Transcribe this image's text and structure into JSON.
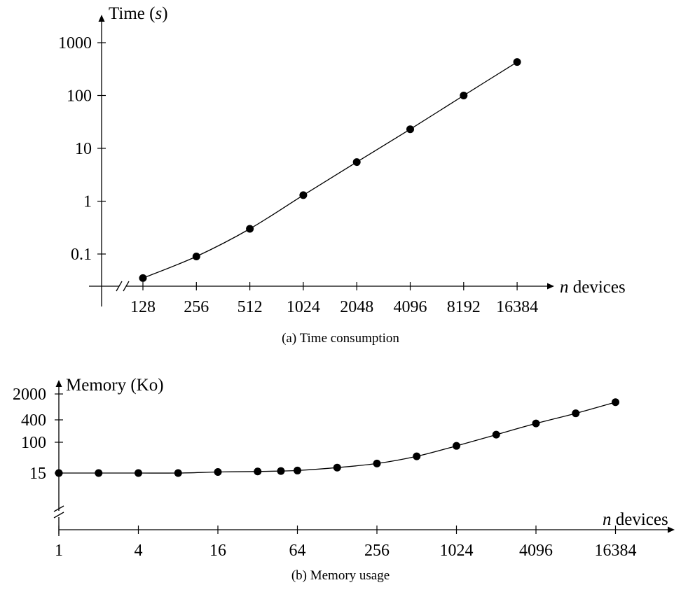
{
  "chart_data": [
    {
      "type": "line",
      "title": "",
      "caption": "(a)  Time consumption",
      "ylabel": "Time (s)",
      "ylabel_prefix": "Time (",
      "ylabel_var": "s",
      "ylabel_suffix": ")",
      "xlabel": "n devices",
      "xlabel_var": "n",
      "xlabel_rest": " devices",
      "x_scale": "log2",
      "y_scale": "log10",
      "axis_break": "x",
      "grid": false,
      "x_ticks": [
        128,
        256,
        512,
        1024,
        2048,
        4096,
        8192,
        16384
      ],
      "x_tick_labels": [
        "128",
        "256",
        "512",
        "1024",
        "2048",
        "4096",
        "8192",
        "16384"
      ],
      "y_ticks": [
        0.1,
        1,
        10,
        100,
        1000
      ],
      "y_tick_labels": [
        "0.1",
        "1",
        "10",
        "100",
        "1000"
      ],
      "ylim": [
        0.025,
        2000
      ],
      "series": [
        {
          "x": [
            128,
            256,
            512,
            1024,
            2048,
            4096,
            8192,
            16384
          ],
          "y": [
            0.035,
            0.09,
            0.3,
            1.3,
            5.5,
            23,
            100,
            430
          ]
        }
      ]
    },
    {
      "type": "line",
      "title": "",
      "caption": "(b)  Memory usage",
      "ylabel": "Memory (Ko)",
      "xlabel": "n devices",
      "xlabel_var": "n",
      "xlabel_rest": " devices",
      "x_scale": "log2",
      "y_scale": "log",
      "axis_break": "y",
      "grid": false,
      "x_ticks": [
        1,
        4,
        16,
        64,
        256,
        1024,
        4096,
        16384
      ],
      "x_tick_labels": [
        "1",
        "4",
        "16",
        "64",
        "256",
        "1024",
        "4096",
        "16384"
      ],
      "y_ticks": [
        15,
        100,
        400,
        2000
      ],
      "y_tick_labels": [
        "15",
        "100",
        "400",
        "2000"
      ],
      "series": [
        {
          "x": [
            1,
            2,
            4,
            8,
            16,
            32,
            48,
            64,
            128,
            256,
            512,
            1024,
            2048,
            4096,
            8192,
            16384
          ],
          "y": [
            15,
            15,
            15,
            15,
            16,
            16.5,
            17,
            17.5,
            21,
            27,
            42,
            80,
            160,
            320,
            600,
            1200
          ]
        }
      ]
    }
  ]
}
